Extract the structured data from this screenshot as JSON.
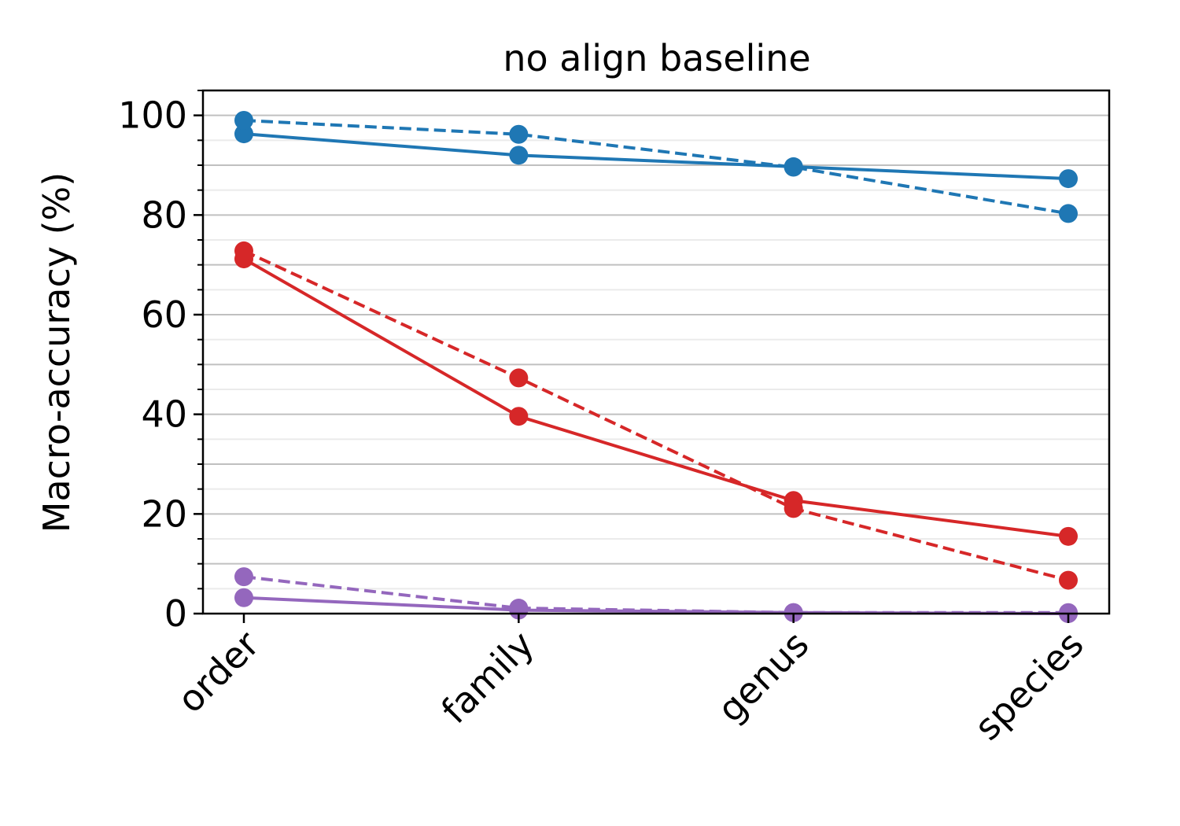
{
  "chart_data": {
    "type": "line",
    "title": "no align baseline",
    "xlabel": "",
    "ylabel": "Macro-accuracy (%)",
    "categories": [
      "order",
      "family",
      "genus",
      "species"
    ],
    "ylim": [
      0,
      105
    ],
    "yticks": [
      "0",
      "20",
      "40",
      "60",
      "80",
      "100"
    ],
    "grid": true,
    "series": [
      {
        "color": "#1f77b4",
        "style": "solid",
        "values": [
          96.3,
          92.0,
          89.7,
          87.3
        ]
      },
      {
        "color": "#1f77b4",
        "style": "dashed",
        "values": [
          99.0,
          96.2,
          89.6,
          80.3
        ]
      },
      {
        "color": "#d62728",
        "style": "solid",
        "values": [
          71.2,
          39.6,
          22.7,
          15.5
        ]
      },
      {
        "color": "#d62728",
        "style": "dashed",
        "values": [
          72.8,
          47.3,
          21.1,
          6.7
        ]
      },
      {
        "color": "#9467bd",
        "style": "solid",
        "values": [
          3.2,
          0.7,
          0.2,
          0.0
        ]
      },
      {
        "color": "#9467bd",
        "style": "dashed",
        "values": [
          7.4,
          1.1,
          0.2,
          0.2
        ]
      }
    ]
  }
}
